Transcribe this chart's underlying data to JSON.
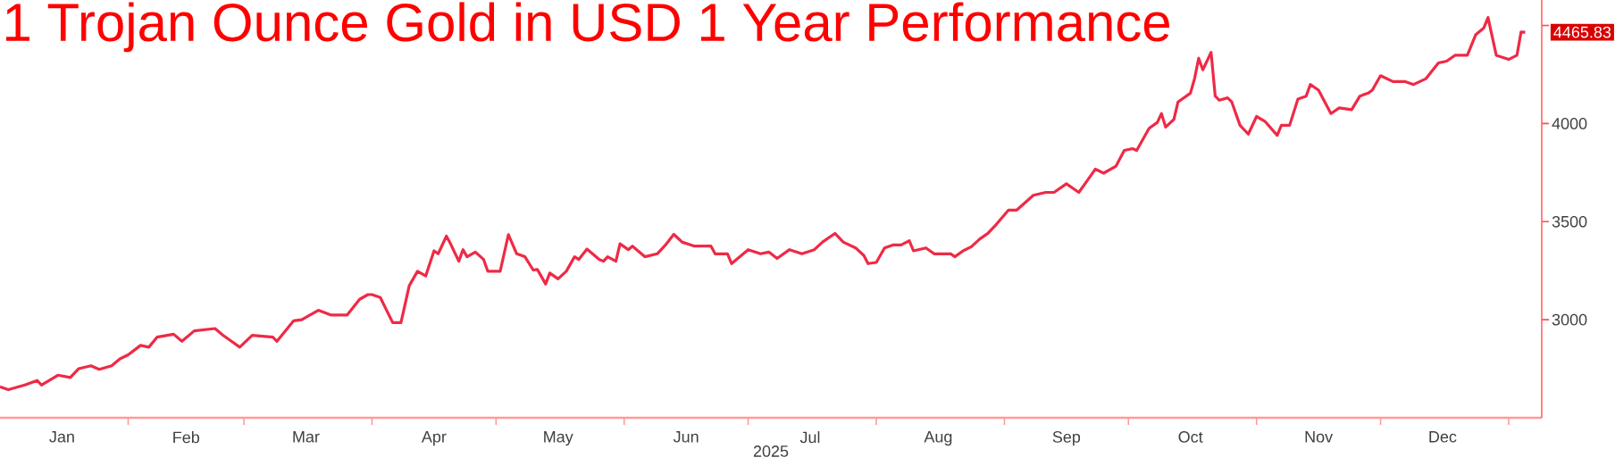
{
  "chart_data": {
    "type": "line",
    "title": "1 Trojan Ounce Gold in USD 1 Year Performance",
    "xlabel": "2025",
    "x": [
      "2025-01-01",
      "2025-01-03",
      "2025-01-07",
      "2025-01-10",
      "2025-01-11",
      "2025-01-15",
      "2025-01-18",
      "2025-01-20",
      "2025-01-23",
      "2025-01-25",
      "2025-01-28",
      "2025-01-30",
      "2025-02-01",
      "2025-02-04",
      "2025-02-06",
      "2025-02-08",
      "2025-02-12",
      "2025-02-14",
      "2025-02-17",
      "2025-02-22",
      "2025-02-24",
      "2025-02-28",
      "2025-03-03",
      "2025-03-08",
      "2025-03-09",
      "2025-03-13",
      "2025-03-15",
      "2025-03-19",
      "2025-03-22",
      "2025-03-26",
      "2025-03-29",
      "2025-03-31",
      "2025-04-01",
      "2025-04-03",
      "2025-04-06",
      "2025-04-08",
      "2025-04-10",
      "2025-04-12",
      "2025-04-14",
      "2025-04-16",
      "2025-04-17",
      "2025-04-19",
      "2025-04-20",
      "2025-04-22",
      "2025-04-23",
      "2025-04-24",
      "2025-04-26",
      "2025-04-28",
      "2025-04-29",
      "2025-05-02",
      "2025-05-04",
      "2025-05-06",
      "2025-05-08",
      "2025-05-10",
      "2025-05-11",
      "2025-05-13",
      "2025-05-14",
      "2025-05-16",
      "2025-05-18",
      "2025-05-20",
      "2025-05-21",
      "2025-05-23",
      "2025-05-26",
      "2025-05-27",
      "2025-05-28",
      "2025-05-30",
      "2025-05-31",
      "2025-06-02",
      "2025-06-03",
      "2025-06-06",
      "2025-06-09",
      "2025-06-11",
      "2025-06-13",
      "2025-06-15",
      "2025-06-18",
      "2025-06-22",
      "2025-06-23",
      "2025-06-26",
      "2025-06-27",
      "2025-07-01",
      "2025-07-04",
      "2025-07-06",
      "2025-07-08",
      "2025-07-11",
      "2025-07-14",
      "2025-07-17",
      "2025-07-19",
      "2025-07-22",
      "2025-07-24",
      "2025-07-27",
      "2025-07-29",
      "2025-07-30",
      "2025-08-01",
      "2025-08-03",
      "2025-08-05",
      "2025-08-07",
      "2025-08-09",
      "2025-08-10",
      "2025-08-13",
      "2025-08-15",
      "2025-08-19",
      "2025-08-20",
      "2025-08-22",
      "2025-08-24",
      "2025-08-26",
      "2025-08-28",
      "2025-08-30",
      "2025-09-02",
      "2025-09-04",
      "2025-09-08",
      "2025-09-11",
      "2025-09-13",
      "2025-09-16",
      "2025-09-19",
      "2025-09-21",
      "2025-09-23",
      "2025-09-25",
      "2025-09-28",
      "2025-09-30",
      "2025-10-02",
      "2025-10-03",
      "2025-10-06",
      "2025-10-08",
      "2025-10-09",
      "2025-10-10",
      "2025-10-12",
      "2025-10-13",
      "2025-10-16",
      "2025-10-17",
      "2025-10-18",
      "2025-10-19",
      "2025-10-21",
      "2025-10-22",
      "2025-10-23",
      "2025-10-25",
      "2025-10-26",
      "2025-10-28",
      "2025-10-30",
      "2025-11-01",
      "2025-11-03",
      "2025-11-06",
      "2025-11-07",
      "2025-11-09",
      "2025-11-11",
      "2025-11-13",
      "2025-11-14",
      "2025-11-16",
      "2025-11-19",
      "2025-11-21",
      "2025-11-24",
      "2025-11-26",
      "2025-11-28",
      "2025-11-29",
      "2025-12-01",
      "2025-12-04",
      "2025-12-07",
      "2025-12-09",
      "2025-12-12",
      "2025-12-15",
      "2025-12-17",
      "2025-12-19",
      "2025-12-22",
      "2025-12-24",
      "2025-12-26",
      "2025-12-27",
      "2025-12-29",
      "2026-01-01",
      "2026-01-03",
      "2026-01-04",
      "2026-01-05"
    ],
    "series": [
      {
        "color": "#ee2a46",
        "values": [
          2658,
          2643,
          2667,
          2690,
          2667,
          2717,
          2705,
          2750,
          2765,
          2747,
          2765,
          2800,
          2821,
          2869,
          2860,
          2911,
          2926,
          2890,
          2943,
          2955,
          2920,
          2860,
          2920,
          2911,
          2890,
          2994,
          3000,
          3048,
          3024,
          3024,
          3104,
          3128,
          3128,
          3113,
          2985,
          2985,
          3173,
          3247,
          3223,
          3351,
          3336,
          3426,
          3387,
          3298,
          3357,
          3321,
          3345,
          3307,
          3247,
          3247,
          3434,
          3336,
          3321,
          3253,
          3256,
          3182,
          3238,
          3208,
          3247,
          3321,
          3307,
          3360,
          3307,
          3298,
          3321,
          3298,
          3387,
          3357,
          3375,
          3321,
          3336,
          3381,
          3435,
          3396,
          3375,
          3375,
          3336,
          3336,
          3286,
          3357,
          3336,
          3345,
          3312,
          3357,
          3336,
          3357,
          3396,
          3440,
          3396,
          3366,
          3327,
          3286,
          3292,
          3366,
          3381,
          3381,
          3402,
          3351,
          3366,
          3336,
          3336,
          3321,
          3351,
          3372,
          3411,
          3440,
          3485,
          3559,
          3559,
          3634,
          3649,
          3649,
          3693,
          3649,
          3708,
          3768,
          3747,
          3783,
          3863,
          3872,
          3863,
          3976,
          4006,
          4051,
          3982,
          4021,
          4110,
          4155,
          4229,
          4333,
          4274,
          4363,
          4140,
          4119,
          4131,
          4110,
          3991,
          3946,
          4036,
          4012,
          3940,
          3991,
          3991,
          4125,
          4140,
          4199,
          4170,
          4051,
          4080,
          4071,
          4140,
          4155,
          4170,
          4244,
          4214,
          4214,
          4199,
          4229,
          4309,
          4318,
          4348,
          4348,
          4452,
          4488,
          4541,
          4348,
          4327,
          4348,
          4467,
          4465.83
        ]
      }
    ],
    "xlim": [
      "2025-01-01",
      "2026-01-09"
    ],
    "xticks": [
      {
        "value": "2025-01-16",
        "label": "Jan"
      },
      {
        "value": "2025-02-01",
        "label": null
      },
      {
        "value": "2025-02-15",
        "label": "Feb"
      },
      {
        "value": "2025-03-01",
        "label": null
      },
      {
        "value": "2025-03-16",
        "label": "Mar"
      },
      {
        "value": "2025-04-01",
        "label": null
      },
      {
        "value": "2025-04-16",
        "label": "Apr"
      },
      {
        "value": "2025-05-01",
        "label": null
      },
      {
        "value": "2025-05-16",
        "label": "May"
      },
      {
        "value": "2025-06-01",
        "label": null
      },
      {
        "value": "2025-06-16",
        "label": "Jun"
      },
      {
        "value": "2025-07-01",
        "label": null
      },
      {
        "value": "2025-07-16",
        "label": "Jul"
      },
      {
        "value": "2025-08-01",
        "label": null
      },
      {
        "value": "2025-08-16",
        "label": "Aug"
      },
      {
        "value": "2025-09-01",
        "label": null
      },
      {
        "value": "2025-09-16",
        "label": "Sep"
      },
      {
        "value": "2025-10-01",
        "label": null
      },
      {
        "value": "2025-10-16",
        "label": "Oct"
      },
      {
        "value": "2025-11-01",
        "label": null
      },
      {
        "value": "2025-11-16",
        "label": "Nov"
      },
      {
        "value": "2025-12-01",
        "label": null
      },
      {
        "value": "2025-12-16",
        "label": "Dec"
      },
      {
        "value": "2026-01-01",
        "label": null
      }
    ],
    "ylim": [
      2500,
      4630
    ],
    "yticks": [
      3000,
      3500,
      4000,
      {
        "value": 4500,
        "label": null
      }
    ],
    "annotations": [
      {
        "text": "4465.83",
        "x": "2026-01-05",
        "y": 4465.83
      }
    ],
    "grid": false,
    "marker": "none",
    "line_style": "solid"
  }
}
